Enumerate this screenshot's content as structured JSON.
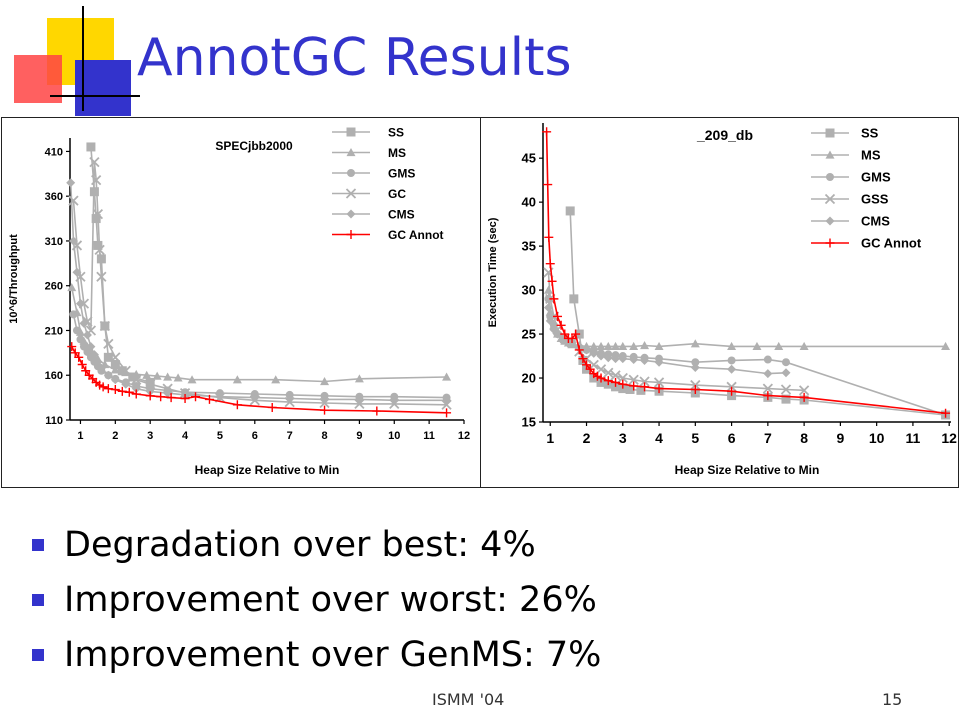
{
  "slide": {
    "title": "AnnotGC Results",
    "bullets": [
      "Degradation over best: 4%",
      "Improvement over worst: 26%",
      "Improvement over GenMS: 7%"
    ],
    "footer_left": "ISMM '04",
    "footer_right": "15",
    "colors": {
      "title": "#3333cc",
      "bullet": "#3333cc",
      "deco_yellow": "#ffd700",
      "deco_blue": "#3333cc",
      "deco_red": "#ff3333"
    }
  },
  "chart_data": [
    {
      "type": "line",
      "title": "SPECjbb2000",
      "xlabel": "Heap Size Relative to Min",
      "ylabel": "10^6/Throughput",
      "xlim": [
        0.7,
        12
      ],
      "ylim": [
        110,
        425
      ],
      "x_ticks": [
        1,
        2,
        3,
        4,
        5,
        6,
        7,
        8,
        9,
        10,
        11,
        12
      ],
      "y_ticks": [
        110,
        160,
        210,
        260,
        310,
        360,
        410
      ],
      "legend_position": "top-right",
      "series": [
        {
          "name": "SS",
          "marker": "square",
          "color": "#b0b0b0",
          "x": [
            1.3,
            1.4,
            1.45,
            1.5,
            1.6,
            1.7,
            1.8,
            2.0,
            2.2,
            2.5,
            3.0
          ],
          "y": [
            415,
            365,
            335,
            305,
            290,
            215,
            180,
            172,
            165,
            158,
            152
          ]
        },
        {
          "name": "MS",
          "marker": "triangle",
          "color": "#b0b0b0",
          "x": [
            0.75,
            0.9,
            1.0,
            1.1,
            1.2,
            1.3,
            1.5,
            1.7,
            2.0,
            2.3,
            2.6,
            2.9,
            3.2,
            3.5,
            3.8,
            4.2,
            5.5,
            6.6,
            8.0,
            9.0,
            11.5
          ],
          "y": [
            258,
            230,
            208,
            198,
            192,
            186,
            178,
            172,
            166,
            163,
            161,
            160,
            159,
            158,
            157,
            155,
            155,
            155,
            153,
            156,
            158
          ]
        },
        {
          "name": "GMS",
          "marker": "circle",
          "color": "#b0b0b0",
          "x": [
            0.8,
            0.9,
            1.0,
            1.1,
            1.2,
            1.3,
            1.4,
            1.5,
            1.6,
            1.8,
            2.0,
            2.3,
            2.6,
            3.0,
            3.5,
            4.0,
            5.0,
            6.0,
            7.0,
            8.0,
            9.0,
            10.0,
            11.5
          ],
          "y": [
            228,
            210,
            200,
            192,
            186,
            180,
            175,
            170,
            165,
            160,
            156,
            152,
            148,
            145,
            143,
            141,
            140,
            139,
            138,
            137,
            136,
            136,
            135
          ]
        },
        {
          "name": "GC",
          "marker": "x",
          "color": "#b0b0b0",
          "x": [
            0.8,
            0.9,
            1.0,
            1.1,
            1.2,
            1.3,
            1.4,
            1.45,
            1.5,
            1.55,
            1.6,
            1.7,
            1.8,
            2.0,
            2.3,
            2.6,
            3.0,
            3.5,
            4.0,
            5.0,
            6.0,
            7.0,
            8.0,
            9.0,
            10.0,
            11.5
          ],
          "y": [
            355,
            305,
            270,
            240,
            220,
            210,
            398,
            378,
            340,
            300,
            270,
            215,
            195,
            180,
            165,
            155,
            150,
            145,
            140,
            135,
            132,
            130,
            129,
            128,
            128,
            127
          ]
        },
        {
          "name": "CMS",
          "marker": "diamond",
          "color": "#b0b0b0",
          "x": [
            0.72,
            0.8,
            0.9,
            1.0,
            1.1,
            1.2,
            1.3,
            1.4,
            1.5,
            1.6,
            1.8,
            2.0,
            2.3,
            2.6,
            3.0,
            3.5,
            4.0,
            5.0,
            6.0,
            7.0,
            8.0,
            9.0,
            10.0,
            11.5
          ],
          "y": [
            375,
            310,
            275,
            240,
            218,
            205,
            192,
            183,
            175,
            168,
            160,
            155,
            150,
            145,
            142,
            140,
            138,
            136,
            135,
            134,
            133,
            133,
            132,
            132
          ]
        },
        {
          "name": "GC Annot",
          "marker": "plus",
          "color": "#ff0000",
          "x": [
            0.75,
            0.85,
            0.95,
            1.05,
            1.15,
            1.25,
            1.35,
            1.45,
            1.55,
            1.65,
            1.8,
            2.0,
            2.2,
            2.4,
            2.6,
            3.0,
            3.3,
            3.6,
            4.0,
            4.3,
            4.7,
            5.5,
            6.5,
            8.0,
            9.5,
            11.5
          ],
          "y": [
            192,
            185,
            180,
            172,
            165,
            160,
            156,
            152,
            149,
            147,
            145,
            144,
            142,
            141,
            139,
            137,
            136,
            135,
            134,
            136,
            133,
            127,
            124,
            121,
            120,
            118
          ]
        }
      ]
    },
    {
      "type": "line",
      "title": "_209_db",
      "xlabel": "Heap Size Relative to Min",
      "ylabel": "Execution Time (sec)",
      "xlim": [
        0.8,
        12.05
      ],
      "ylim": [
        15,
        49
      ],
      "x_ticks": [
        1,
        2,
        3,
        4,
        5,
        6,
        7,
        8,
        9,
        10,
        11,
        12
      ],
      "y_ticks": [
        15,
        20,
        25,
        30,
        35,
        40,
        45
      ],
      "legend_position": "top-right",
      "series": [
        {
          "name": "SS",
          "marker": "square",
          "color": "#b0b0b0",
          "x": [
            1.55,
            1.65,
            1.8,
            1.9,
            2.0,
            2.2,
            2.4,
            2.6,
            2.8,
            3.0,
            3.2,
            3.5,
            4.0,
            5.0,
            6.0,
            7.0,
            7.5,
            8.0,
            11.9
          ],
          "y": [
            39,
            29,
            25,
            22,
            21,
            20,
            19.5,
            19.3,
            19,
            18.8,
            18.7,
            18.6,
            18.5,
            18.3,
            18.0,
            17.8,
            17.6,
            17.5,
            15.8
          ]
        },
        {
          "name": "MS",
          "marker": "triangle",
          "color": "#b0b0b0",
          "x": [
            0.95,
            1.0,
            1.1,
            1.2,
            1.3,
            1.4,
            1.5,
            1.6,
            1.8,
            2.0,
            2.2,
            2.4,
            2.6,
            2.8,
            3.0,
            3.3,
            3.6,
            4.0,
            5.0,
            6.0,
            6.7,
            7.3,
            8.0,
            11.9
          ],
          "y": [
            30,
            27.5,
            26,
            25,
            24.5,
            24.2,
            24,
            23.8,
            23.7,
            23.6,
            23.6,
            23.6,
            23.6,
            23.6,
            23.6,
            23.6,
            23.7,
            23.6,
            23.9,
            23.6,
            23.6,
            23.6,
            23.6,
            23.6
          ]
        },
        {
          "name": "GMS",
          "marker": "circle",
          "color": "#b0b0b0",
          "x": [
            0.95,
            1.0,
            1.1,
            1.2,
            1.4,
            1.6,
            1.8,
            2.0,
            2.2,
            2.4,
            2.6,
            2.8,
            3.0,
            3.3,
            3.6,
            4.0,
            5.0,
            6.0,
            7.0,
            7.5,
            11.9
          ],
          "y": [
            29,
            27,
            26,
            25,
            24.5,
            24,
            23.5,
            23.2,
            23,
            22.8,
            22.7,
            22.6,
            22.5,
            22.4,
            22.3,
            22.2,
            21.8,
            22,
            22.1,
            21.8,
            15.8
          ]
        },
        {
          "name": "GSS",
          "marker": "x",
          "color": "#b0b0b0",
          "x": [
            0.95,
            1.0,
            1.1,
            1.2,
            1.4,
            1.6,
            1.8,
            2.0,
            2.2,
            2.4,
            2.6,
            2.8,
            3.0,
            3.3,
            3.6,
            4.0,
            5.0,
            6.0,
            7.0,
            7.5,
            8.0
          ],
          "y": [
            32,
            29,
            27,
            25.5,
            24.5,
            24,
            23,
            22.2,
            21.5,
            21,
            20.6,
            20.3,
            20,
            19.8,
            19.6,
            19.5,
            19.2,
            19,
            18.8,
            18.7,
            18.6
          ]
        },
        {
          "name": "CMS",
          "marker": "diamond",
          "color": "#b0b0b0",
          "x": [
            0.95,
            1.0,
            1.1,
            1.2,
            1.4,
            1.6,
            1.8,
            2.0,
            2.2,
            2.4,
            2.6,
            2.8,
            3.0,
            3.3,
            3.6,
            4.0,
            5.0,
            6.0,
            7.0,
            7.5
          ],
          "y": [
            28,
            26.5,
            25.5,
            25,
            24.5,
            24,
            23.5,
            23.2,
            22.8,
            22.5,
            22.3,
            22.2,
            22.2,
            22.1,
            22.0,
            21.8,
            21.2,
            21.0,
            20.5,
            20.6
          ]
        },
        {
          "name": "GC Annot",
          "marker": "plus",
          "color": "#ff0000",
          "x": [
            0.9,
            0.93,
            0.96,
            1.0,
            1.05,
            1.1,
            1.2,
            1.3,
            1.4,
            1.5,
            1.6,
            1.7,
            1.8,
            1.9,
            2.0,
            2.1,
            2.2,
            2.3,
            2.4,
            2.6,
            2.8,
            3.0,
            3.3,
            3.6,
            4.0,
            5.0,
            6.0,
            7.0,
            8.0,
            11.9
          ],
          "y": [
            48,
            42,
            36,
            33,
            31,
            29,
            27,
            26,
            25,
            24.5,
            24.5,
            25,
            23.2,
            22.2,
            21.5,
            21,
            20.5,
            20.2,
            20,
            19.7,
            19.5,
            19.3,
            19.1,
            19.0,
            18.8,
            18.7,
            18.5,
            18.0,
            17.8,
            16
          ]
        }
      ]
    }
  ]
}
